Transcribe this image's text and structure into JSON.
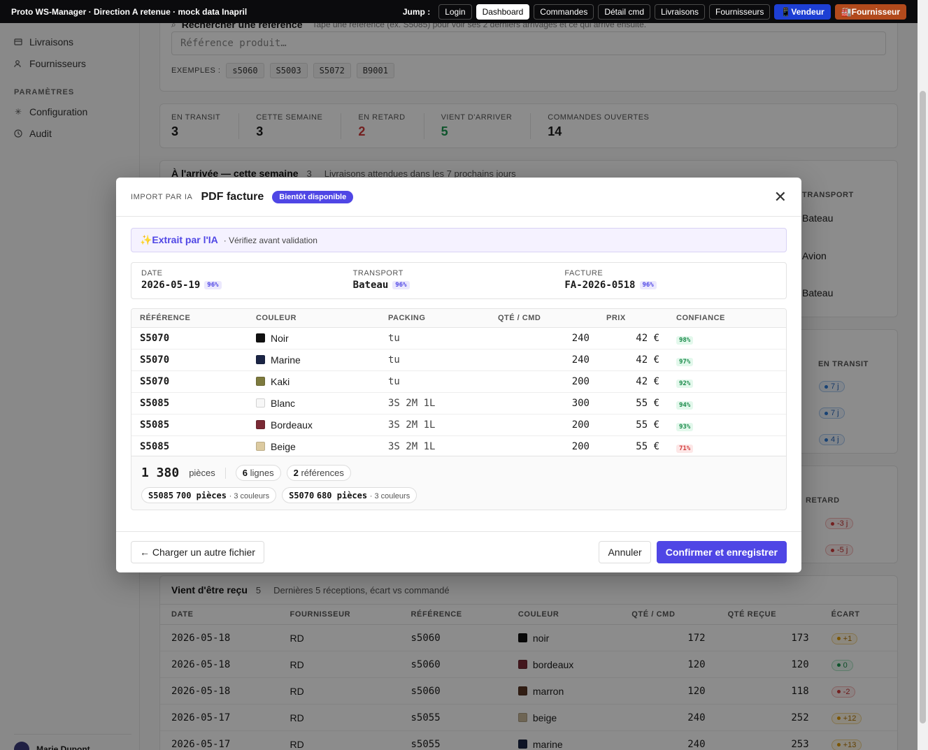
{
  "topbar": {
    "title": "Proto WS-Manager · Direction A retenue · mock data Inapril",
    "jump_label": "Jump :",
    "buttons": [
      "Login",
      "Dashboard",
      "Commandes",
      "Détail cmd",
      "Livraisons",
      "Fournisseurs",
      "📱Vendeur",
      "🏭Fournisseur"
    ],
    "active": "Dashboard"
  },
  "sidebar": {
    "items_top": [
      {
        "label": "Livraisons",
        "icon": "truck-icon"
      },
      {
        "label": "Fournisseurs",
        "icon": "users-icon"
      }
    ],
    "group_label": "PARAMÈTRES",
    "items_params": [
      {
        "label": "Configuration",
        "icon": "gear-icon"
      },
      {
        "label": "Audit",
        "icon": "clock-icon"
      }
    ],
    "user_name": "Marie Dupont"
  },
  "search": {
    "title": "Rechercher une référence",
    "hint": "Tape une référence (ex. S5085) pour voir ses 2 derniers arrivages et ce qui arrive ensuite.",
    "placeholder": "Référence produit…",
    "examples_label": "EXEMPLES :",
    "examples": [
      "s5060",
      "S5003",
      "S5072",
      "B9001"
    ]
  },
  "kpis": [
    {
      "label": "EN TRANSIT",
      "value": "3",
      "color": "#1a1a1a"
    },
    {
      "label": "CETTE SEMAINE",
      "value": "3",
      "color": "#1a1a1a"
    },
    {
      "label": "EN RETARD",
      "value": "2",
      "color": "#d23b3b"
    },
    {
      "label": "VIENT D'ARRIVER",
      "value": "5",
      "color": "#1a9a50"
    },
    {
      "label": "COMMANDES OUVERTES",
      "value": "14",
      "color": "#1a1a1a"
    }
  ],
  "arrivals": {
    "title": "À l'arrivée — cette semaine",
    "count": "3",
    "subtitle": "Livraisons attendues dans les 7 prochains jours",
    "col_transport": "TRANSPORT",
    "transports": [
      "Bateau",
      "Avion",
      "Bateau"
    ]
  },
  "transit": {
    "col": "EN TRANSIT",
    "values": [
      "7 j",
      "7 j",
      "4 j"
    ]
  },
  "late": {
    "col": "RETARD",
    "values": [
      "-3 j",
      "-5 j"
    ]
  },
  "received": {
    "title": "Vient d'être reçu",
    "count": "5",
    "subtitle": "Dernières 5 réceptions, écart vs commandé",
    "columns": [
      "DATE",
      "FOURNISSEUR",
      "RÉFÉRENCE",
      "COULEUR",
      "QTÉ / CMD",
      "QTÉ REÇUE",
      "ÉCART"
    ],
    "rows": [
      {
        "date": "2026-05-18",
        "supplier": "RD",
        "ref": "s5060",
        "color": "noir",
        "swatch": "#111111",
        "qty": "172",
        "recv": "173",
        "gap": "+1",
        "tone": "y"
      },
      {
        "date": "2026-05-18",
        "supplier": "RD",
        "ref": "s5060",
        "color": "bordeaux",
        "swatch": "#7a2a35",
        "qty": "120",
        "recv": "120",
        "gap": "0",
        "tone": "g"
      },
      {
        "date": "2026-05-18",
        "supplier": "RD",
        "ref": "s5060",
        "color": "marron",
        "swatch": "#5a3624",
        "qty": "120",
        "recv": "118",
        "gap": "-2",
        "tone": "r"
      },
      {
        "date": "2026-05-17",
        "supplier": "RD",
        "ref": "s5055",
        "color": "beige",
        "swatch": "#c9b99a",
        "qty": "240",
        "recv": "252",
        "gap": "+12",
        "tone": "y"
      },
      {
        "date": "2026-05-17",
        "supplier": "RD",
        "ref": "s5055",
        "color": "marine",
        "swatch": "#1b2545",
        "qty": "240",
        "recv": "253",
        "gap": "+13",
        "tone": "y"
      }
    ]
  },
  "modal": {
    "kicker": "IMPORT PAR IA",
    "title": "PDF facture",
    "badge": "Bientôt disponible",
    "ai_label": "✨Extrait par l'IA",
    "ai_note": "· Vérifiez avant validation",
    "meta": [
      {
        "label": "DATE",
        "value": "2026-05-19",
        "conf": "96%"
      },
      {
        "label": "TRANSPORT",
        "value": "Bateau",
        "conf": "96%"
      },
      {
        "label": "FACTURE",
        "value": "FA-2026-0518",
        "conf": "96%"
      }
    ],
    "columns": [
      "RÉFÉRENCE",
      "COULEUR",
      "PACKING",
      "QTÉ / CMD",
      "PRIX",
      "CONFIANCE"
    ],
    "rows": [
      {
        "ref": "S5070",
        "color": "Noir",
        "swatch": "#111111",
        "packing": "tu",
        "qty": "240",
        "price": "42 €",
        "conf": "98%",
        "tone": "gr"
      },
      {
        "ref": "S5070",
        "color": "Marine",
        "swatch": "#1b2545",
        "packing": "tu",
        "qty": "240",
        "price": "42 €",
        "conf": "97%",
        "tone": "gr"
      },
      {
        "ref": "S5070",
        "color": "Kaki",
        "swatch": "#7d7a3e",
        "packing": "tu",
        "qty": "200",
        "price": "42 €",
        "conf": "92%",
        "tone": "gr"
      },
      {
        "ref": "S5085",
        "color": "Blanc",
        "swatch": "#f7f7f7",
        "packing": "3S 2M 1L",
        "qty": "300",
        "price": "55 €",
        "conf": "94%",
        "tone": "gr"
      },
      {
        "ref": "S5085",
        "color": "Bordeaux",
        "swatch": "#7a2a35",
        "packing": "3S 2M 1L",
        "qty": "200",
        "price": "55 €",
        "conf": "93%",
        "tone": "gr"
      },
      {
        "ref": "S5085",
        "color": "Beige",
        "swatch": "#dccaa0",
        "packing": "3S 2M 1L",
        "qty": "200",
        "price": "55 €",
        "conf": "71%",
        "tone": "rd"
      }
    ],
    "summary": {
      "total": "1 380",
      "total_unit": "pièces",
      "lines_n": "6",
      "lines_label": "lignes",
      "refs_n": "2",
      "refs_label": "références",
      "groups": [
        {
          "ref": "S5085",
          "qty": "700 pièces",
          "colors": "· 3 couleurs"
        },
        {
          "ref": "S5070",
          "qty": "680 pièces",
          "colors": "· 3 couleurs"
        }
      ]
    },
    "btn_back": "← Charger un autre fichier",
    "btn_cancel": "Annuler",
    "btn_confirm": "Confirmer et enregistrer"
  }
}
